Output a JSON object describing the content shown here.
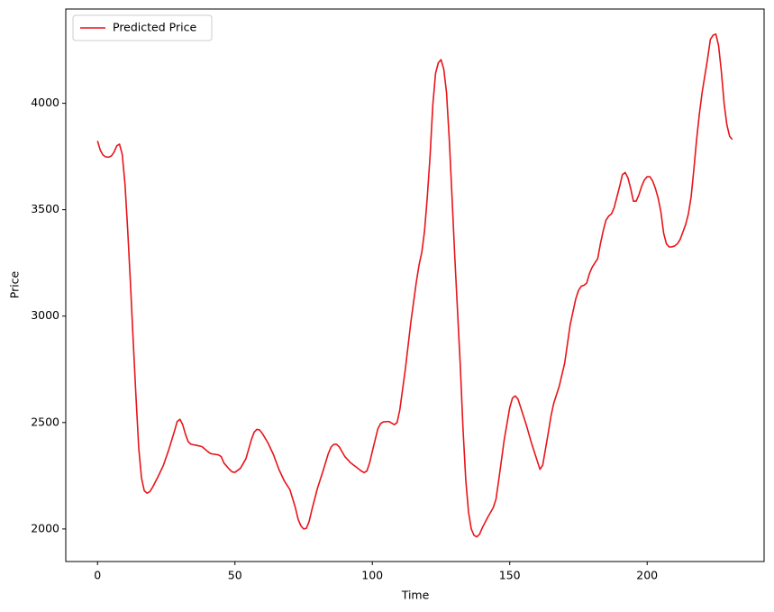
{
  "chart_data": {
    "type": "line",
    "xlabel": "Time",
    "ylabel": "Price",
    "x": [
      0,
      1,
      2,
      3,
      4,
      5,
      6,
      7,
      8,
      9,
      10,
      11,
      12,
      13,
      14,
      15,
      16,
      17,
      18,
      19,
      20,
      22,
      24,
      26,
      28,
      29,
      30,
      31,
      32,
      33,
      34,
      36,
      38,
      40,
      41,
      42,
      44,
      45,
      46,
      48,
      49,
      50,
      52,
      54,
      56,
      57,
      58,
      59,
      60,
      62,
      64,
      66,
      68,
      70,
      72,
      73,
      74,
      75,
      76,
      77,
      78,
      80,
      82,
      84,
      85,
      86,
      87,
      88,
      90,
      92,
      94,
      96,
      97,
      98,
      99,
      100,
      102,
      103,
      104,
      106,
      108,
      109,
      110,
      112,
      114,
      116,
      117,
      118,
      119,
      120,
      121,
      122,
      123,
      124,
      125,
      126,
      127,
      128,
      129,
      130,
      132,
      133,
      134,
      135,
      136,
      137,
      138,
      139,
      140,
      142,
      144,
      145,
      146,
      148,
      150,
      151,
      152,
      153,
      154,
      156,
      158,
      160,
      161,
      162,
      164,
      165,
      166,
      168,
      170,
      172,
      174,
      175,
      176,
      177,
      178,
      179,
      180,
      181,
      182,
      183,
      184,
      185,
      186,
      187,
      188,
      189,
      190,
      191,
      192,
      193,
      194,
      195,
      196,
      197,
      198,
      199,
      200,
      201,
      202,
      203,
      204,
      205,
      206,
      207,
      208,
      209,
      210,
      211,
      212,
      213,
      214,
      215,
      216,
      217,
      218,
      219,
      220,
      221,
      222,
      223,
      224,
      225,
      226,
      227,
      228,
      229,
      230,
      231
    ],
    "series": [
      {
        "name": "Predicted Price",
        "color": "#e8141a",
        "values": [
          3823,
          3780,
          3757,
          3748,
          3747,
          3752,
          3770,
          3800,
          3808,
          3760,
          3620,
          3400,
          3150,
          2880,
          2620,
          2380,
          2240,
          2180,
          2168,
          2175,
          2195,
          2245,
          2300,
          2375,
          2460,
          2505,
          2515,
          2490,
          2445,
          2410,
          2398,
          2393,
          2387,
          2365,
          2355,
          2352,
          2348,
          2340,
          2310,
          2280,
          2268,
          2266,
          2285,
          2330,
          2420,
          2455,
          2468,
          2465,
          2448,
          2405,
          2350,
          2280,
          2225,
          2185,
          2100,
          2045,
          2015,
          2000,
          2003,
          2035,
          2090,
          2190,
          2270,
          2355,
          2385,
          2398,
          2398,
          2385,
          2340,
          2312,
          2292,
          2272,
          2265,
          2272,
          2310,
          2365,
          2470,
          2495,
          2503,
          2505,
          2490,
          2500,
          2560,
          2750,
          2970,
          3160,
          3240,
          3300,
          3400,
          3560,
          3750,
          3990,
          4140,
          4190,
          4205,
          4160,
          4050,
          3830,
          3560,
          3280,
          2770,
          2470,
          2230,
          2080,
          2000,
          1970,
          1963,
          1975,
          2005,
          2055,
          2100,
          2140,
          2230,
          2420,
          2570,
          2615,
          2625,
          2610,
          2570,
          2490,
          2400,
          2320,
          2280,
          2300,
          2450,
          2530,
          2590,
          2670,
          2780,
          2960,
          3080,
          3120,
          3140,
          3145,
          3155,
          3200,
          3230,
          3250,
          3270,
          3340,
          3400,
          3450,
          3470,
          3480,
          3510,
          3560,
          3610,
          3665,
          3675,
          3650,
          3600,
          3540,
          3540,
          3570,
          3610,
          3640,
          3655,
          3655,
          3635,
          3600,
          3555,
          3490,
          3390,
          3340,
          3325,
          3325,
          3330,
          3340,
          3360,
          3395,
          3430,
          3480,
          3560,
          3690,
          3830,
          3950,
          4050,
          4130,
          4210,
          4300,
          4320,
          4325,
          4270,
          4150,
          4000,
          3900,
          3845,
          3830
        ]
      }
    ],
    "xlim": [
      -11.55,
      242.55
    ],
    "xticks": [
      0,
      50,
      100,
      150,
      200
    ],
    "ylim": [
      1847,
      4443
    ],
    "yticks": [
      2000,
      2500,
      3000,
      3500,
      4000
    ],
    "grid": false,
    "legend": "upper left"
  }
}
